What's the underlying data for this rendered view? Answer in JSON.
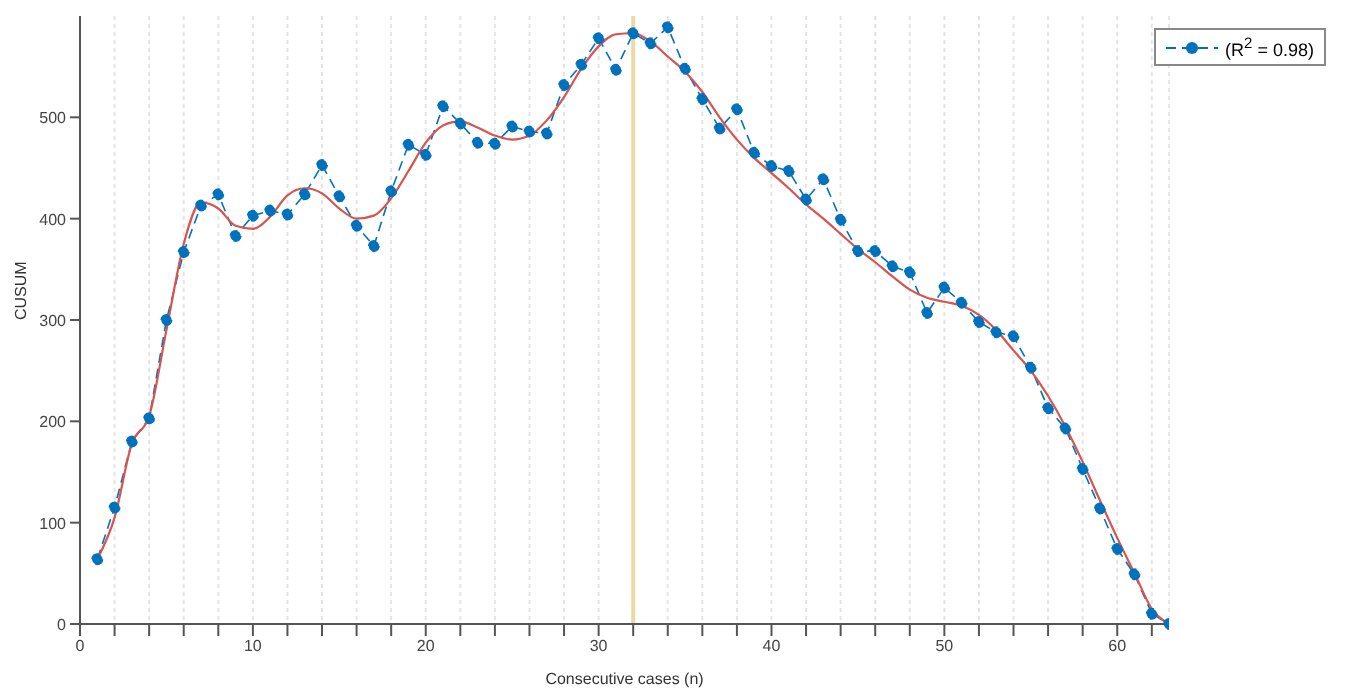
{
  "chart_data": {
    "type": "line",
    "xlabel": "Consecutive cases (n)",
    "ylabel": "CUSUM",
    "x": [
      1,
      2,
      3,
      4,
      5,
      6,
      7,
      8,
      9,
      10,
      11,
      12,
      13,
      14,
      15,
      16,
      17,
      18,
      19,
      20,
      21,
      22,
      23,
      24,
      25,
      26,
      27,
      28,
      29,
      30,
      31,
      32,
      33,
      34,
      35,
      36,
      37,
      38,
      39,
      40,
      41,
      42,
      43,
      44,
      45,
      46,
      47,
      48,
      49,
      50,
      51,
      52,
      53,
      54,
      55,
      56,
      57,
      58,
      59,
      60,
      61,
      62,
      63
    ],
    "series": [
      {
        "name": "(R$^{2}$ = 0.98)",
        "color": "#0072bd",
        "marker": "circle",
        "line_style": "dashed",
        "values": [
          64,
          115,
          180,
          203,
          300,
          367,
          413,
          424,
          383,
          403,
          408,
          404,
          424,
          453,
          422,
          393,
          373,
          427,
          473,
          463,
          511,
          494,
          475,
          474,
          491,
          486,
          484,
          532,
          552,
          578,
          547,
          583,
          573,
          589,
          548,
          518,
          489,
          508,
          465,
          452,
          447,
          419,
          439,
          399,
          368,
          368,
          353,
          347,
          307,
          332,
          317,
          298,
          288,
          284,
          253,
          213,
          193,
          153,
          114,
          74,
          49,
          10,
          0
        ]
      },
      {
        "type": "line",
        "color": "#d9534f",
        "marker": "none",
        "line_style": "solid",
        "values": [
          64,
          105,
          178,
          205,
          290,
          375,
          416,
          410,
          393,
          390,
          402,
          423,
          430,
          425,
          410,
          400,
          403,
          420,
          447,
          475,
          492,
          496,
          490,
          482,
          478,
          482,
          497,
          520,
          548,
          570,
          582,
          583,
          575,
          560,
          545,
          525,
          500,
          478,
          460,
          445,
          430,
          414,
          400,
          385,
          370,
          357,
          343,
          330,
          322,
          318,
          314,
          305,
          290,
          270,
          250,
          225,
          195,
          160,
          122,
          85,
          50,
          15,
          0
        ]
      }
    ],
    "xlim": [
      0,
      63
    ],
    "xticks": [
      0,
      {
        "value": 2,
        "label": null
      },
      {
        "value": 4,
        "label": null
      },
      {
        "value": 6,
        "label": null
      },
      {
        "value": 8,
        "label": null
      },
      10,
      {
        "value": 12,
        "label": null
      },
      {
        "value": 14,
        "label": null
      },
      {
        "value": 16,
        "label": null
      },
      {
        "value": 18,
        "label": null
      },
      20,
      {
        "value": 22,
        "label": null
      },
      {
        "value": 24,
        "label": null
      },
      {
        "value": 26,
        "label": null
      },
      {
        "value": 28,
        "label": null
      },
      30,
      {
        "value": 32,
        "label": null
      },
      {
        "value": 34,
        "label": null
      },
      {
        "value": 36,
        "label": null
      },
      {
        "value": 38,
        "label": null
      },
      40,
      {
        "value": 42,
        "label": null
      },
      {
        "value": 44,
        "label": null
      },
      {
        "value": 46,
        "label": null
      },
      {
        "value": 48,
        "label": null
      },
      50,
      {
        "value": 52,
        "label": null
      },
      {
        "value": 54,
        "label": null
      },
      {
        "value": 56,
        "label": null
      },
      {
        "value": 58,
        "label": null
      },
      60,
      {
        "value": 62,
        "label": null
      }
    ],
    "ylim": [
      0,
      600
    ],
    "yticks": [
      0,
      100,
      200,
      300,
      400,
      500
    ],
    "grid": "x",
    "legend": "top right",
    "ref_lines": [
      {
        "axis": "x",
        "value": 32,
        "label": null,
        "color": "#edd9a3"
      }
    ]
  }
}
